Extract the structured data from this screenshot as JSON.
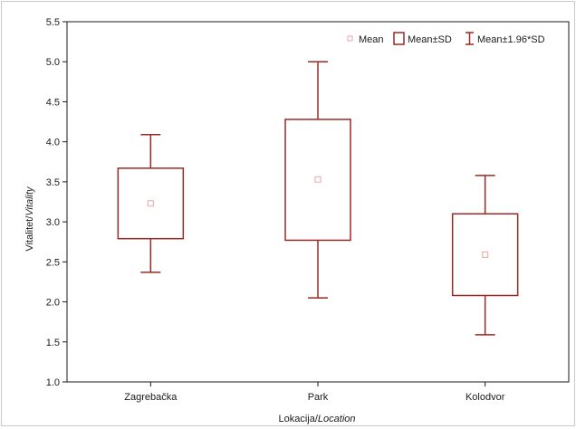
{
  "chart_data": {
    "type": "boxplot",
    "xlabel_parts": [
      "Lokacija/",
      "Location"
    ],
    "ylabel_parts": [
      "Vitalitet/",
      "Vitality"
    ],
    "ylim": [
      1.0,
      5.5
    ],
    "yticks": [
      "1.0",
      "1.5",
      "2.0",
      "2.5",
      "3.0",
      "3.5",
      "4.0",
      "4.5",
      "5.0",
      "5.5"
    ],
    "ytick_values": [
      1.0,
      1.5,
      2.0,
      2.5,
      3.0,
      3.5,
      4.0,
      4.5,
      5.0,
      5.5
    ],
    "categories": [
      "Zagrebačka",
      "Park",
      "Kolodvor"
    ],
    "series": [
      {
        "category": "Zagrebačka",
        "mean": 3.23,
        "sd_low": 2.79,
        "sd_high": 3.67,
        "ci_low": 2.37,
        "ci_high": 4.09
      },
      {
        "category": "Park",
        "mean": 3.53,
        "sd_low": 2.77,
        "sd_high": 4.28,
        "ci_low": 2.05,
        "ci_high": 5.0
      },
      {
        "category": "Kolodvor",
        "mean": 2.59,
        "sd_low": 2.08,
        "sd_high": 3.1,
        "ci_low": 1.59,
        "ci_high": 3.58
      }
    ],
    "legend": {
      "placement": "top-right",
      "items": [
        "Mean",
        "Mean±SD",
        "Mean±1.96*SD"
      ]
    },
    "grid": false,
    "colors": {
      "box": "#9a2a22",
      "mean_marker": "#e3aaa0",
      "axis": "#1a1a1a"
    }
  }
}
